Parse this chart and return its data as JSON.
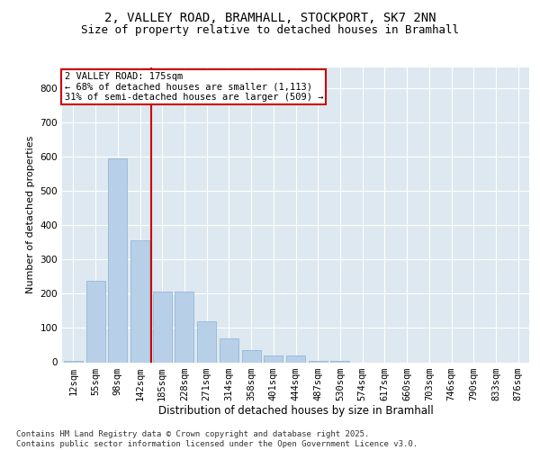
{
  "title1": "2, VALLEY ROAD, BRAMHALL, STOCKPORT, SK7 2NN",
  "title2": "Size of property relative to detached houses in Bramhall",
  "xlabel": "Distribution of detached houses by size in Bramhall",
  "ylabel": "Number of detached properties",
  "categories": [
    "12sqm",
    "55sqm",
    "98sqm",
    "142sqm",
    "185sqm",
    "228sqm",
    "271sqm",
    "314sqm",
    "358sqm",
    "401sqm",
    "444sqm",
    "487sqm",
    "530sqm",
    "574sqm",
    "617sqm",
    "660sqm",
    "703sqm",
    "746sqm",
    "790sqm",
    "833sqm",
    "876sqm"
  ],
  "values": [
    5,
    237,
    595,
    355,
    205,
    205,
    120,
    70,
    35,
    20,
    20,
    5,
    5,
    0,
    0,
    0,
    0,
    0,
    0,
    0,
    0
  ],
  "bar_color": "#b8cfe8",
  "bar_edge_color": "#8ab0d4",
  "vline_color": "#cc0000",
  "annotation_text": "2 VALLEY ROAD: 175sqm\n← 68% of detached houses are smaller (1,113)\n31% of semi-detached houses are larger (509) →",
  "annotation_box_edge_color": "#cc0000",
  "ylim": [
    0,
    860
  ],
  "yticks": [
    0,
    100,
    200,
    300,
    400,
    500,
    600,
    700,
    800
  ],
  "plot_bg_color": "#dde8f0",
  "footer": "Contains HM Land Registry data © Crown copyright and database right 2025.\nContains public sector information licensed under the Open Government Licence v3.0.",
  "title1_fontsize": 10,
  "title2_fontsize": 9,
  "xlabel_fontsize": 8.5,
  "ylabel_fontsize": 8,
  "tick_fontsize": 7.5,
  "footer_fontsize": 6.5,
  "annotation_fontsize": 7.5
}
